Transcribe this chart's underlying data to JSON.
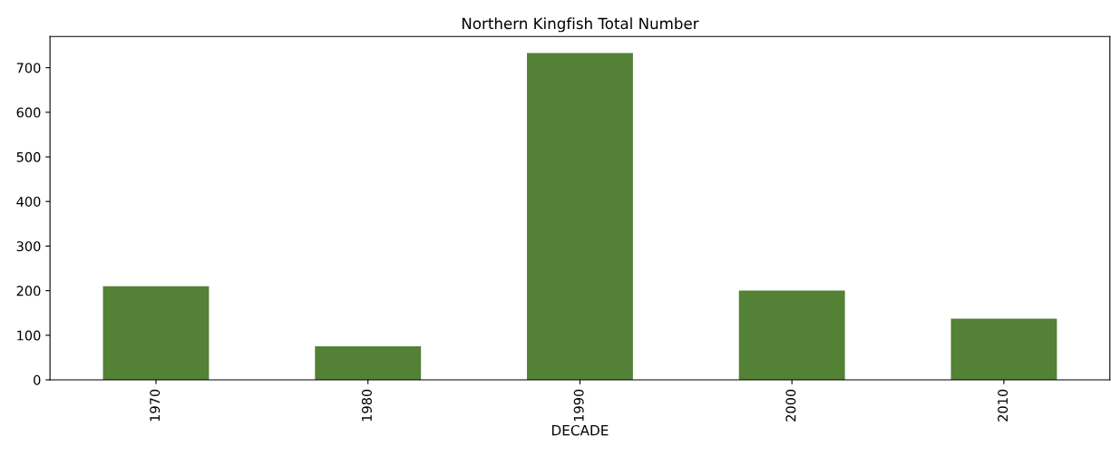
{
  "chart_data": {
    "type": "bar",
    "title": "Northern Kingfish Total Number",
    "xlabel": "DECADE",
    "categories": [
      "1970",
      "1980",
      "1990",
      "2000",
      "2010"
    ],
    "values": [
      210,
      75,
      733,
      200,
      137
    ],
    "color": "#538135",
    "ylim": [
      0,
      770
    ],
    "yticks": [
      0,
      100,
      200,
      300,
      400,
      500,
      600,
      700
    ],
    "grid": false
  }
}
